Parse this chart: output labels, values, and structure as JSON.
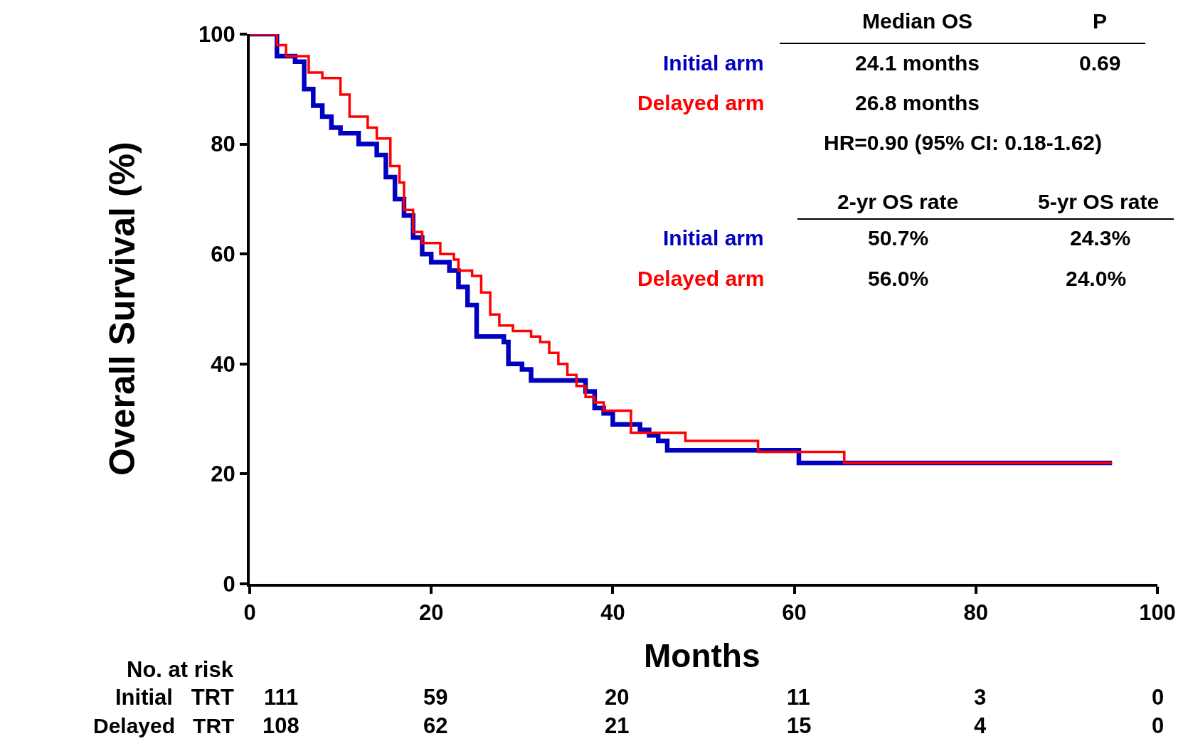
{
  "chart_data": {
    "type": "step",
    "xlabel": "Months",
    "ylabel": "Overall Survival (%)",
    "xlim": [
      0,
      100
    ],
    "ylim": [
      0,
      100
    ],
    "xticks": [
      0,
      20,
      40,
      60,
      80,
      100
    ],
    "yticks": [
      0,
      20,
      40,
      60,
      80,
      100
    ],
    "legend": false,
    "marker": "none",
    "line_style": "solid",
    "series": [
      {
        "name": "Initial arm",
        "color": "#0000c0",
        "x": [
          0,
          3,
          5,
          6,
          7,
          8,
          9,
          10,
          12,
          14,
          15,
          16,
          17,
          18,
          19,
          20,
          22,
          23,
          24,
          25,
          28,
          28.5,
          30,
          31,
          36,
          37,
          38,
          39,
          40,
          43,
          44,
          45,
          46,
          60.5,
          95
        ],
        "values": [
          100,
          96,
          95,
          90,
          87,
          85,
          83,
          82,
          80,
          78,
          74,
          70,
          67,
          63,
          60,
          58.5,
          57,
          54,
          50.7,
          45,
          44,
          40,
          39,
          37,
          37,
          35,
          32,
          31,
          29,
          28,
          27,
          26,
          24.3,
          22,
          22
        ]
      },
      {
        "name": "Delayed arm",
        "color": "#ff0000",
        "x": [
          0,
          3,
          4,
          6.5,
          8,
          10,
          11,
          13,
          14,
          15.5,
          16.5,
          17,
          18,
          19,
          21,
          22.5,
          23,
          24.5,
          25.5,
          26.5,
          27.5,
          29,
          31,
          32,
          33,
          34,
          35,
          36,
          37,
          38,
          39,
          42,
          48,
          56,
          65.5,
          95
        ],
        "values": [
          100,
          98,
          96,
          93,
          92,
          89,
          85,
          83,
          81,
          76,
          73,
          68,
          64,
          62,
          60,
          59,
          57,
          56,
          53,
          49,
          47,
          46,
          45,
          44,
          42,
          40,
          38,
          36,
          34,
          33,
          31.5,
          27.5,
          26,
          24,
          22,
          22
        ]
      }
    ],
    "annotations": [
      "Median OS",
      "P",
      "24.1 months",
      "0.69",
      "26.8 months",
      "HR=0.90 (95% CI: 0.18-1.62)",
      "2-yr OS rate",
      "5-yr OS rate",
      "50.7%",
      "24.3%",
      "56.0%",
      "24.0%",
      "No. at risk",
      "Initial   TRT",
      "Delayed   TRT",
      "111",
      "59",
      "20",
      "11",
      "3",
      "0",
      "108",
      "62",
      "21",
      "15",
      "4",
      "0"
    ]
  }
}
